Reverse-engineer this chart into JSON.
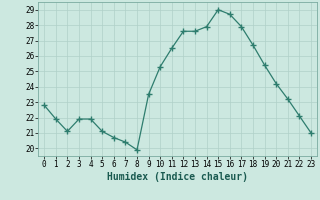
{
  "x": [
    0,
    1,
    2,
    3,
    4,
    5,
    6,
    7,
    8,
    9,
    10,
    11,
    12,
    13,
    14,
    15,
    16,
    17,
    18,
    19,
    20,
    21,
    22,
    23
  ],
  "y": [
    22.8,
    21.9,
    21.1,
    21.9,
    21.9,
    21.1,
    20.7,
    20.4,
    19.9,
    23.5,
    25.3,
    26.5,
    27.6,
    27.6,
    27.9,
    29.0,
    28.7,
    27.9,
    26.7,
    25.4,
    24.2,
    23.2,
    22.1,
    21.0
  ],
  "line_color": "#2e7d6e",
  "marker": "+",
  "marker_size": 4,
  "bg_color": "#cce8e0",
  "grid_color": "#b0d0c8",
  "xlabel": "Humidex (Indice chaleur)",
  "ylim": [
    19.5,
    29.5
  ],
  "yticks": [
    20,
    21,
    22,
    23,
    24,
    25,
    26,
    27,
    28,
    29
  ],
  "xticks": [
    0,
    1,
    2,
    3,
    4,
    5,
    6,
    7,
    8,
    9,
    10,
    11,
    12,
    13,
    14,
    15,
    16,
    17,
    18,
    19,
    20,
    21,
    22,
    23
  ],
  "tick_fontsize": 5.5,
  "xlabel_fontsize": 7,
  "lw": 0.9
}
